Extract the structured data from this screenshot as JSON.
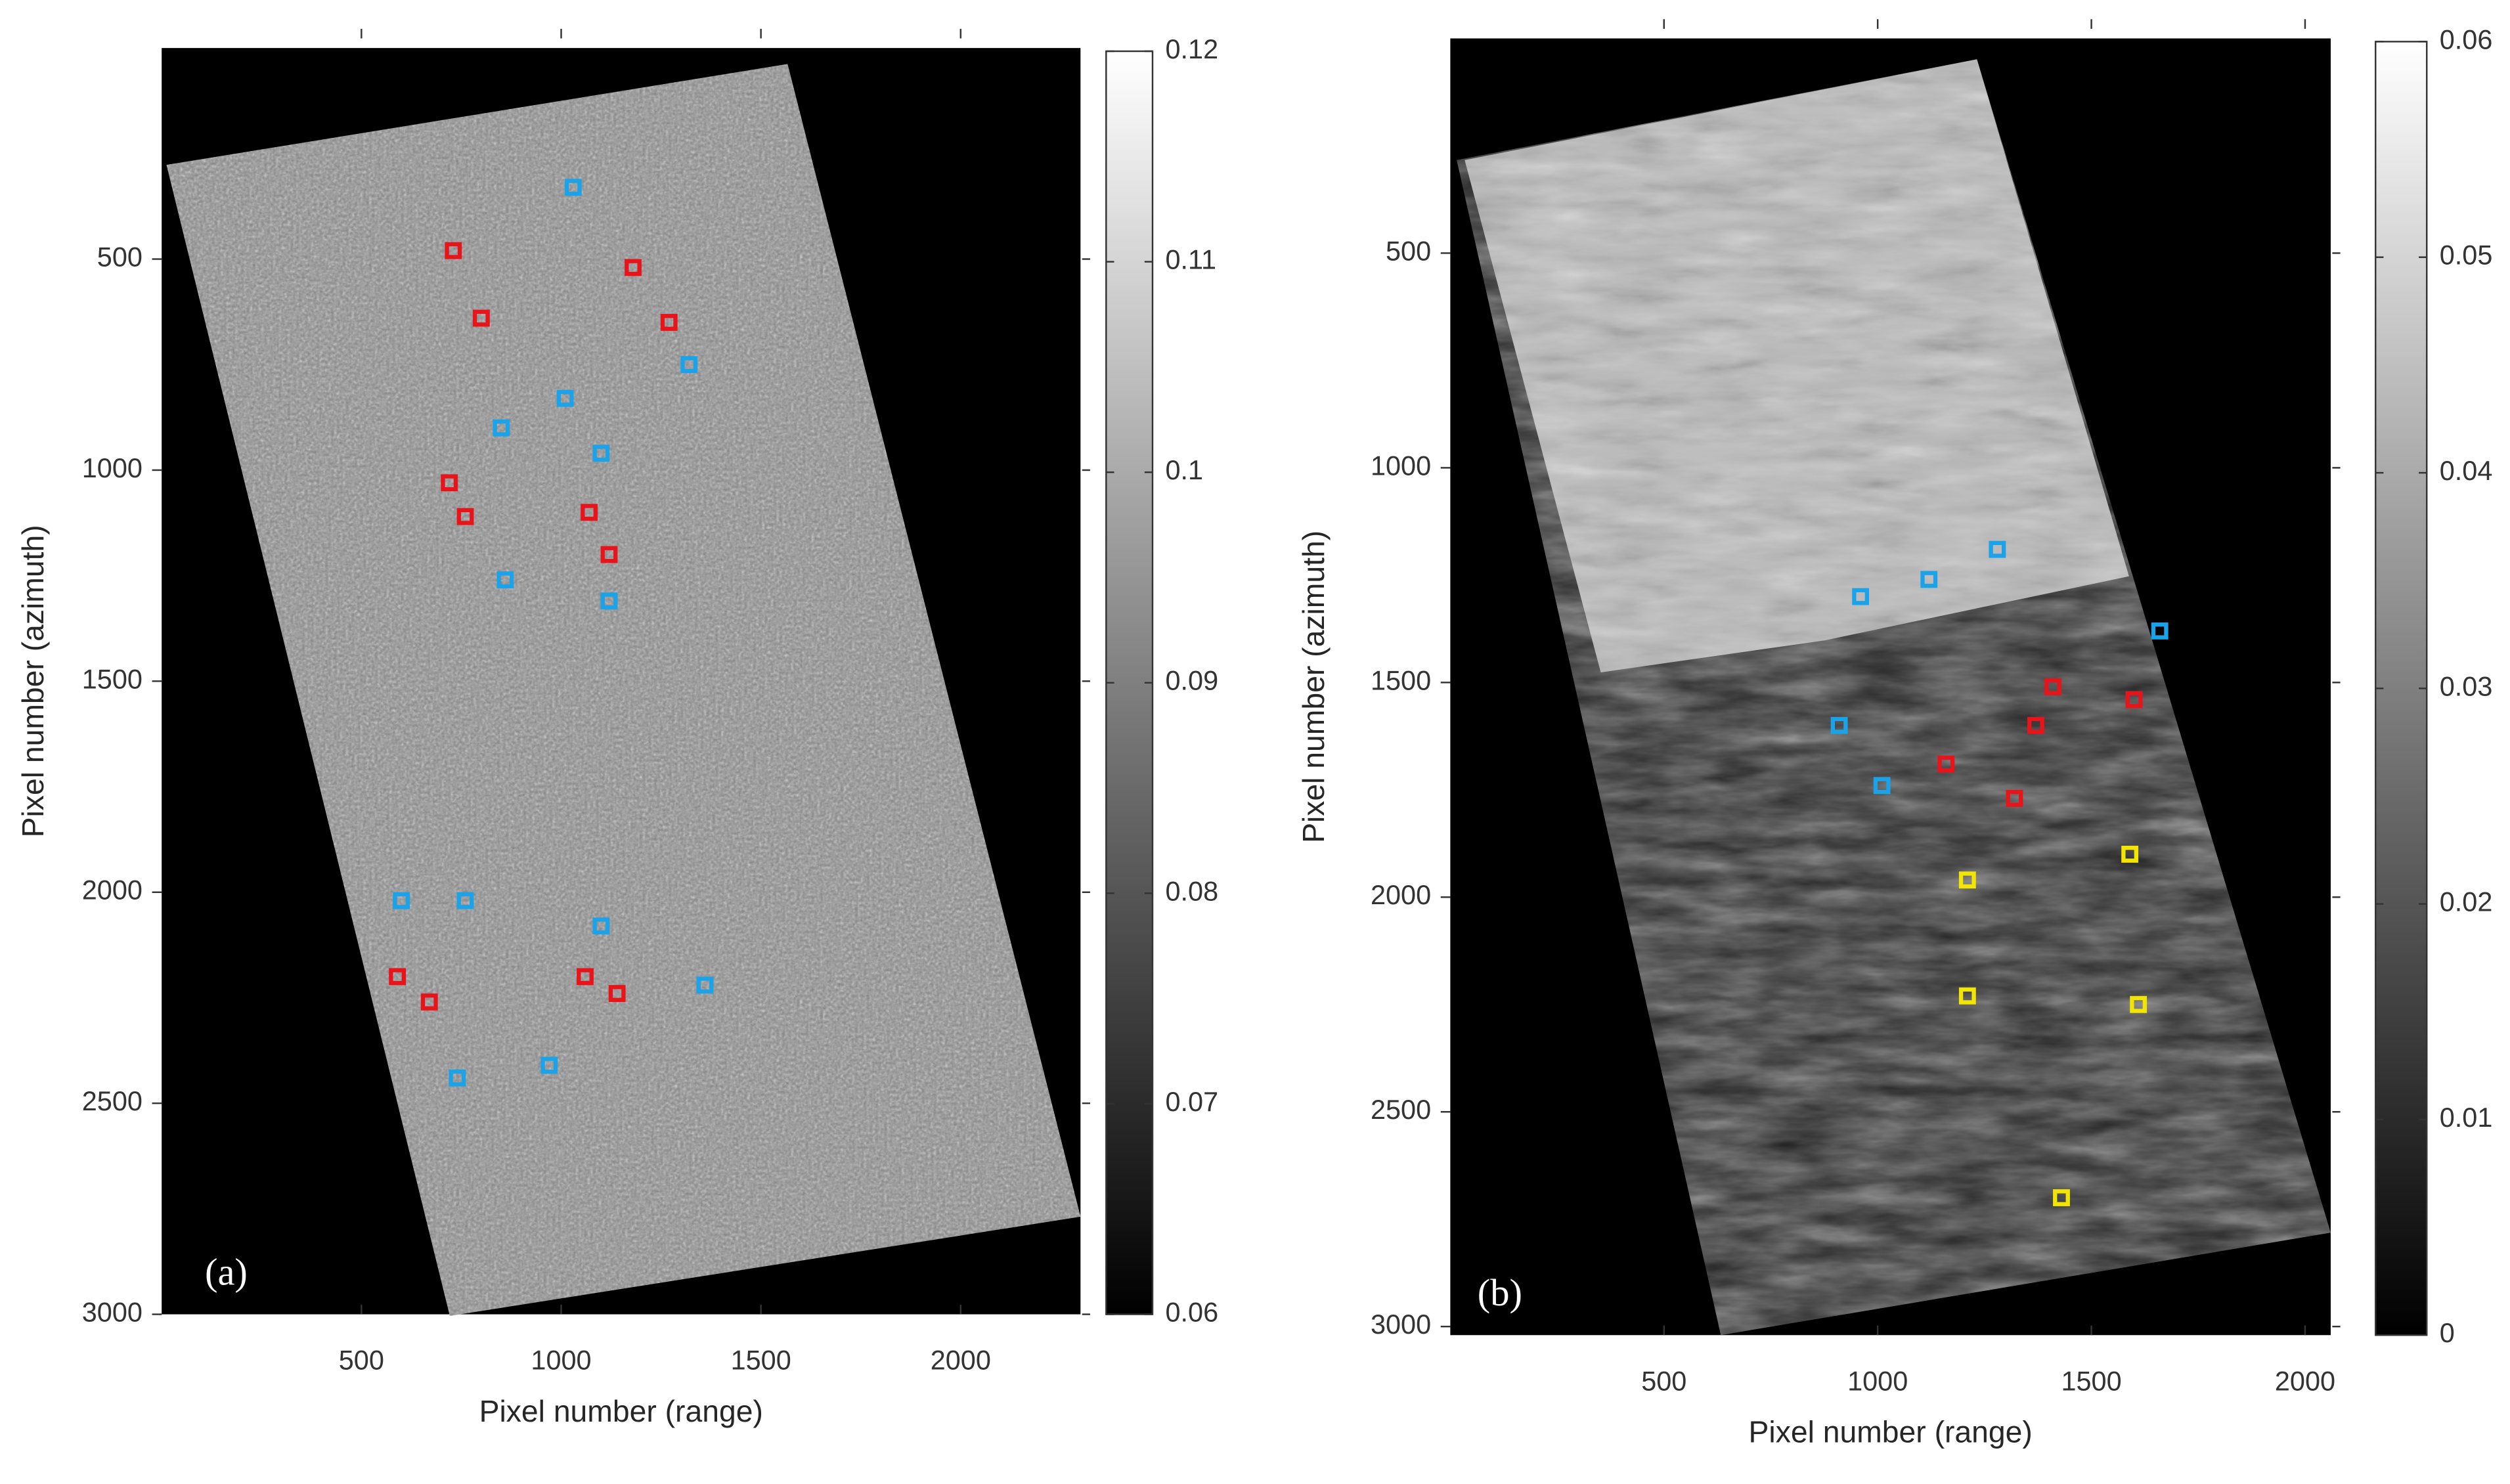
{
  "chart_data": [
    {
      "type": "scatter",
      "panel_label": "(a)",
      "xlabel": "Pixel number (range)",
      "ylabel": "Pixel number (azimuth)",
      "xlim": [
        0,
        2300
      ],
      "xticks": [
        500,
        1000,
        1500,
        2000
      ],
      "ylim": [
        0,
        3000
      ],
      "yticks": [
        500,
        1000,
        1500,
        2000,
        2500,
        3000
      ],
      "y_inverted": true,
      "colorbar": {
        "colormap": "gray",
        "lim": [
          0.06,
          0.12
        ],
        "ticks": [
          0.06,
          0.07,
          0.08,
          0.09,
          0.1,
          0.11,
          0.12
        ]
      },
      "series": [
        {
          "color": "#1aa3e8",
          "x": [
            1030,
            1320,
            1010,
            850,
            1100,
            860,
            1120,
            600,
            760,
            1100,
            1360,
            970,
            740
          ],
          "values": [
            330,
            750,
            830,
            900,
            960,
            1260,
            1310,
            2020,
            2020,
            2080,
            2220,
            2410,
            2440
          ]
        },
        {
          "color": "#e8141a",
          "x": [
            730,
            1180,
            800,
            1270,
            720,
            760,
            1070,
            1120,
            590,
            670,
            1060,
            1140
          ],
          "values": [
            480,
            520,
            640,
            650,
            1030,
            1110,
            1100,
            1200,
            2200,
            2260,
            2200,
            2240
          ]
        }
      ]
    },
    {
      "type": "scatter",
      "panel_label": "(b)",
      "xlabel": "Pixel number (range)",
      "ylabel": "Pixel number (azimuth)",
      "xlim": [
        0,
        2060
      ],
      "xticks": [
        500,
        1000,
        1500,
        2000
      ],
      "ylim": [
        0,
        3020
      ],
      "yticks": [
        500,
        1000,
        1500,
        2000,
        2500,
        3000
      ],
      "y_inverted": true,
      "colorbar": {
        "colormap": "gray",
        "lim": [
          0,
          0.06
        ],
        "ticks": [
          0,
          0.01,
          0.02,
          0.03,
          0.04,
          0.05,
          0.06
        ]
      },
      "series": [
        {
          "color": "#1aa3e8",
          "x": [
            1280,
            1120,
            960,
            1660,
            910,
            1010
          ],
          "values": [
            1190,
            1260,
            1300,
            1380,
            1600,
            1740
          ]
        },
        {
          "color": "#e8141a",
          "x": [
            1410,
            1600,
            1370,
            1160,
            1320
          ],
          "values": [
            1510,
            1540,
            1600,
            1690,
            1770
          ]
        },
        {
          "color": "#f2e600",
          "x": [
            1210,
            1590,
            1210,
            1610,
            1430
          ],
          "values": [
            1960,
            1900,
            2230,
            2250,
            2700
          ]
        }
      ]
    }
  ]
}
